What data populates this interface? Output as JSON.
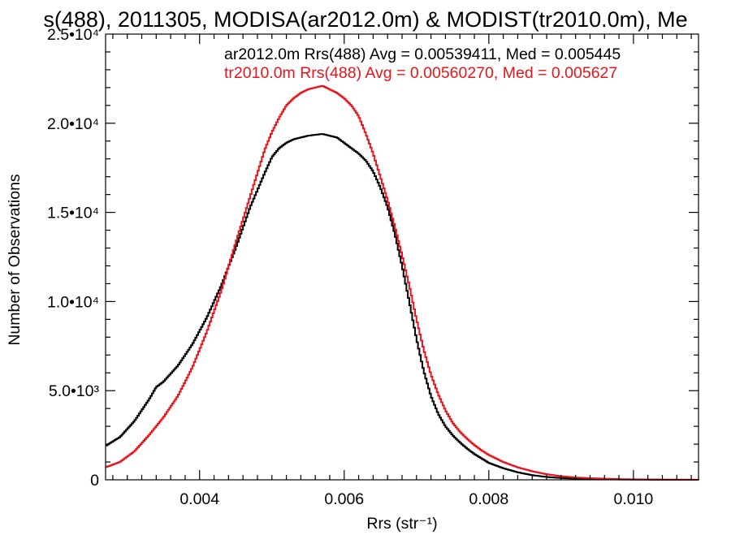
{
  "chart_data": {
    "type": "line",
    "title": "s(488), 2011305, MODISA(ar2012.0m) & MODIST(tr2010.0m), Me",
    "xlabel": "Rrs (str⁻¹)",
    "ylabel": "Number of Observations",
    "xlim": [
      0.0027,
      0.0109
    ],
    "ylim": [
      0,
      25000
    ],
    "xticks": [
      {
        "value": 0.004,
        "label": "0.004"
      },
      {
        "value": 0.006,
        "label": "0.006"
      },
      {
        "value": 0.008,
        "label": "0.008"
      },
      {
        "value": 0.01,
        "label": "0.010"
      }
    ],
    "yticks": [
      {
        "value": 0,
        "label": "0"
      },
      {
        "value": 5000,
        "label": "5.0•10³"
      },
      {
        "value": 10000,
        "label": "1.0•10⁴"
      },
      {
        "value": 15000,
        "label": "1.5•10⁴"
      },
      {
        "value": 20000,
        "label": "2.0•10⁴"
      },
      {
        "value": 25000,
        "label": "2.5•10⁴"
      }
    ],
    "grid": false,
    "legend_position": "top-right",
    "series": [
      {
        "name": "ar2012.0m Rrs(488) Avg = 0.00539411, Med = 0.005445",
        "color": "#000000",
        "x": [
          0.0027,
          0.0029,
          0.0031,
          0.0033,
          0.0034,
          0.0035,
          0.0037,
          0.0039,
          0.0041,
          0.0043,
          0.0045,
          0.0047,
          0.0049,
          0.005,
          0.0051,
          0.0052,
          0.0053,
          0.0054,
          0.0055,
          0.0056,
          0.0057,
          0.0058,
          0.0059,
          0.006,
          0.0061,
          0.0062,
          0.0063,
          0.0064,
          0.0065,
          0.0066,
          0.0067,
          0.0068,
          0.0069,
          0.007,
          0.0071,
          0.0072,
          0.0073,
          0.0074,
          0.0075,
          0.0076,
          0.0077,
          0.0078,
          0.0079,
          0.008,
          0.0082,
          0.0084,
          0.0086,
          0.0088,
          0.009,
          0.0092,
          0.0095,
          0.0098,
          0.0101,
          0.0105,
          0.0109
        ],
        "values": [
          1900,
          2400,
          3300,
          4500,
          5200,
          5500,
          6400,
          7600,
          9100,
          10900,
          13000,
          15300,
          17200,
          18100,
          18600,
          18900,
          19100,
          19200,
          19300,
          19350,
          19400,
          19300,
          19200,
          18900,
          18600,
          18300,
          17900,
          17300,
          16400,
          15300,
          13800,
          12000,
          10000,
          7900,
          6100,
          4700,
          3700,
          3000,
          2500,
          2100,
          1750,
          1450,
          1200,
          950,
          650,
          420,
          260,
          160,
          100,
          65,
          35,
          20,
          10,
          5,
          2
        ]
      },
      {
        "name": "tr2010.0m Rrs(488) Avg = 0.00560270, Med = 0.005627",
        "color": "#e8141b",
        "x": [
          0.0027,
          0.0029,
          0.0031,
          0.0033,
          0.0035,
          0.0037,
          0.0039,
          0.0041,
          0.0043,
          0.0045,
          0.0047,
          0.0049,
          0.005,
          0.0051,
          0.0052,
          0.0053,
          0.0054,
          0.0055,
          0.0056,
          0.0057,
          0.0058,
          0.0059,
          0.006,
          0.0061,
          0.0062,
          0.0063,
          0.0064,
          0.0065,
          0.0066,
          0.0067,
          0.0068,
          0.0069,
          0.007,
          0.0071,
          0.0072,
          0.0073,
          0.0074,
          0.0075,
          0.0076,
          0.0077,
          0.0078,
          0.0079,
          0.008,
          0.0082,
          0.0084,
          0.0086,
          0.0088,
          0.009,
          0.0092,
          0.0095,
          0.0098,
          0.0101,
          0.0105,
          0.0109
        ],
        "values": [
          700,
          1000,
          1600,
          2500,
          3500,
          4700,
          6300,
          8300,
          10600,
          13300,
          15900,
          18500,
          19500,
          20300,
          21000,
          21400,
          21700,
          21900,
          22000,
          22100,
          21900,
          21700,
          21400,
          21000,
          20400,
          19400,
          18300,
          17000,
          15700,
          14200,
          12600,
          10900,
          9000,
          7300,
          5900,
          4800,
          3900,
          3200,
          2700,
          2300,
          1950,
          1650,
          1400,
          1000,
          700,
          480,
          310,
          200,
          130,
          75,
          40,
          22,
          10,
          4
        ]
      }
    ]
  }
}
